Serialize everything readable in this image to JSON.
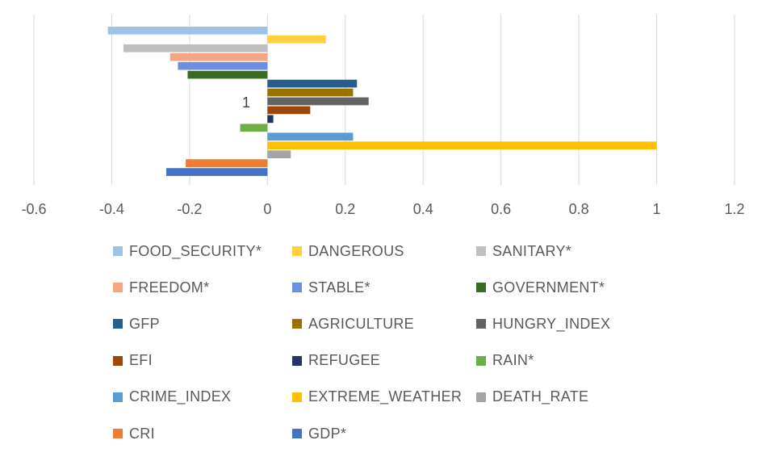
{
  "chart_data": {
    "type": "bar",
    "orientation": "horizontal",
    "categories": [
      "1"
    ],
    "xlim": [
      -0.6,
      1.2
    ],
    "x_ticks": [
      "-0.6",
      "-0.4",
      "-0.2",
      "0",
      "0.2",
      "0.4",
      "0.6",
      "0.8",
      "1",
      "1.2"
    ],
    "grid": "vertical",
    "legend_position": "bottom",
    "series": [
      {
        "name": "FOOD_SECURITY*",
        "values": [
          -0.41
        ],
        "color": "#9dc3e6"
      },
      {
        "name": "DANGEROUS",
        "values": [
          0.15
        ],
        "color": "#ffd13f"
      },
      {
        "name": "SANITARY*",
        "values": [
          -0.37
        ],
        "color": "#bfbfbf"
      },
      {
        "name": "FREEDOM*",
        "values": [
          -0.25
        ],
        "color": "#f4a582"
      },
      {
        "name": "STABLE*",
        "values": [
          -0.23
        ],
        "color": "#6c8ede"
      },
      {
        "name": "GOVERNMENT*",
        "values": [
          -0.205
        ],
        "color": "#3a6b22"
      },
      {
        "name": "GFP",
        "values": [
          0.23
        ],
        "color": "#255e91"
      },
      {
        "name": "AGRICULTURE",
        "values": [
          0.22
        ],
        "color": "#997300"
      },
      {
        "name": "HUNGRY_INDEX",
        "values": [
          0.26
        ],
        "color": "#636363"
      },
      {
        "name": "EFI",
        "values": [
          0.11
        ],
        "color": "#9e480e"
      },
      {
        "name": "REFUGEE",
        "values": [
          0.015
        ],
        "color": "#1f3864"
      },
      {
        "name": "RAIN*",
        "values": [
          -0.07
        ],
        "color": "#70ad47"
      },
      {
        "name": "CRIME_INDEX",
        "values": [
          0.22
        ],
        "color": "#5b9bd5"
      },
      {
        "name": "EXTREME_WEATHER",
        "values": [
          1.0
        ],
        "color": "#ffc000"
      },
      {
        "name": "DEATH_RATE",
        "values": [
          0.06
        ],
        "color": "#a5a5a5"
      },
      {
        "name": "CRI",
        "values": [
          -0.21
        ],
        "color": "#ed7d31"
      },
      {
        "name": "GDP*",
        "values": [
          -0.26
        ],
        "color": "#4472c4"
      }
    ]
  }
}
